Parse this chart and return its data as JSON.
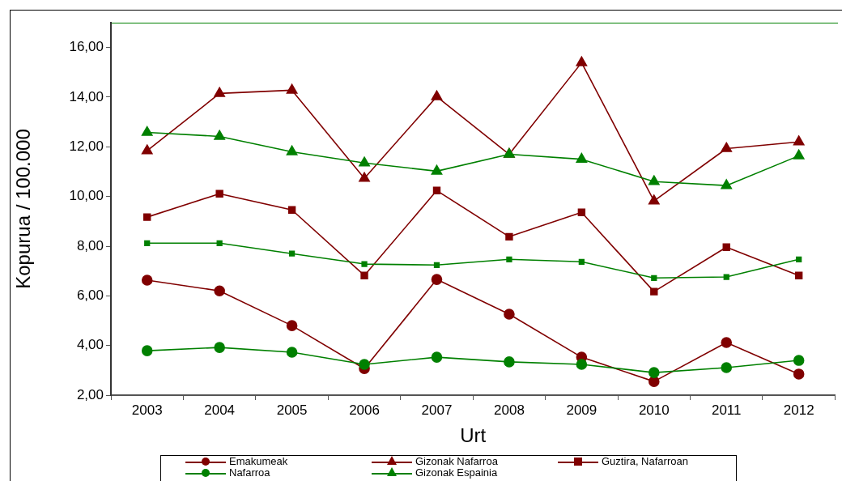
{
  "chart_data": {
    "type": "line",
    "xlabel": "Urt",
    "ylabel": "Kopurua / 100.000",
    "categories": [
      "2003",
      "2004",
      "2005",
      "2006",
      "2007",
      "2008",
      "2009",
      "2010",
      "2011",
      "2012"
    ],
    "ylim": [
      2,
      17
    ],
    "yticks": [
      {
        "value": 2,
        "label": "2,00"
      },
      {
        "value": 4,
        "label": "4,00"
      },
      {
        "value": 6,
        "label": "6,00"
      },
      {
        "value": 8,
        "label": "8,00"
      },
      {
        "value": 10,
        "label": "10,00"
      },
      {
        "value": 12,
        "label": "12,00"
      },
      {
        "value": 14,
        "label": "14,00"
      },
      {
        "value": 16,
        "label": "16,00"
      }
    ],
    "grid": false,
    "legend": "bottom",
    "line_style": "solid",
    "series": [
      {
        "name": "Emakumeak",
        "color": "#800000",
        "marker": "circle",
        "values": [
          6.63,
          6.2,
          4.8,
          3.07,
          6.66,
          5.26,
          3.53,
          2.55,
          4.12,
          2.85
        ]
      },
      {
        "name": "Gizonak Nafarroa",
        "color": "#800000",
        "marker": "triangle",
        "values": [
          11.84,
          14.15,
          14.28,
          10.73,
          14.02,
          11.7,
          15.39,
          9.82,
          11.93,
          12.2
        ]
      },
      {
        "name": "Guztira, Nafarroan",
        "color": "#800000",
        "marker": "square",
        "values": [
          9.17,
          10.11,
          9.46,
          6.82,
          10.24,
          8.38,
          9.36,
          6.17,
          7.96,
          6.82
        ]
      },
      {
        "name": "Nafarroa",
        "color": "#008000",
        "marker": "circle",
        "values": [
          3.79,
          3.92,
          3.73,
          3.24,
          3.53,
          3.34,
          3.24,
          2.91,
          3.11,
          3.4
        ]
      },
      {
        "name": "Gizonak Espainia",
        "color": "#008000",
        "marker": "triangle",
        "values": [
          12.58,
          12.42,
          11.8,
          11.35,
          11.02,
          11.7,
          11.5,
          10.6,
          10.44,
          11.64
        ]
      },
      {
        "color": "#008000",
        "marker": "square",
        "values": [
          8.12,
          8.12,
          7.7,
          7.28,
          7.24,
          7.47,
          7.37,
          6.72,
          6.76,
          7.47
        ]
      }
    ]
  }
}
